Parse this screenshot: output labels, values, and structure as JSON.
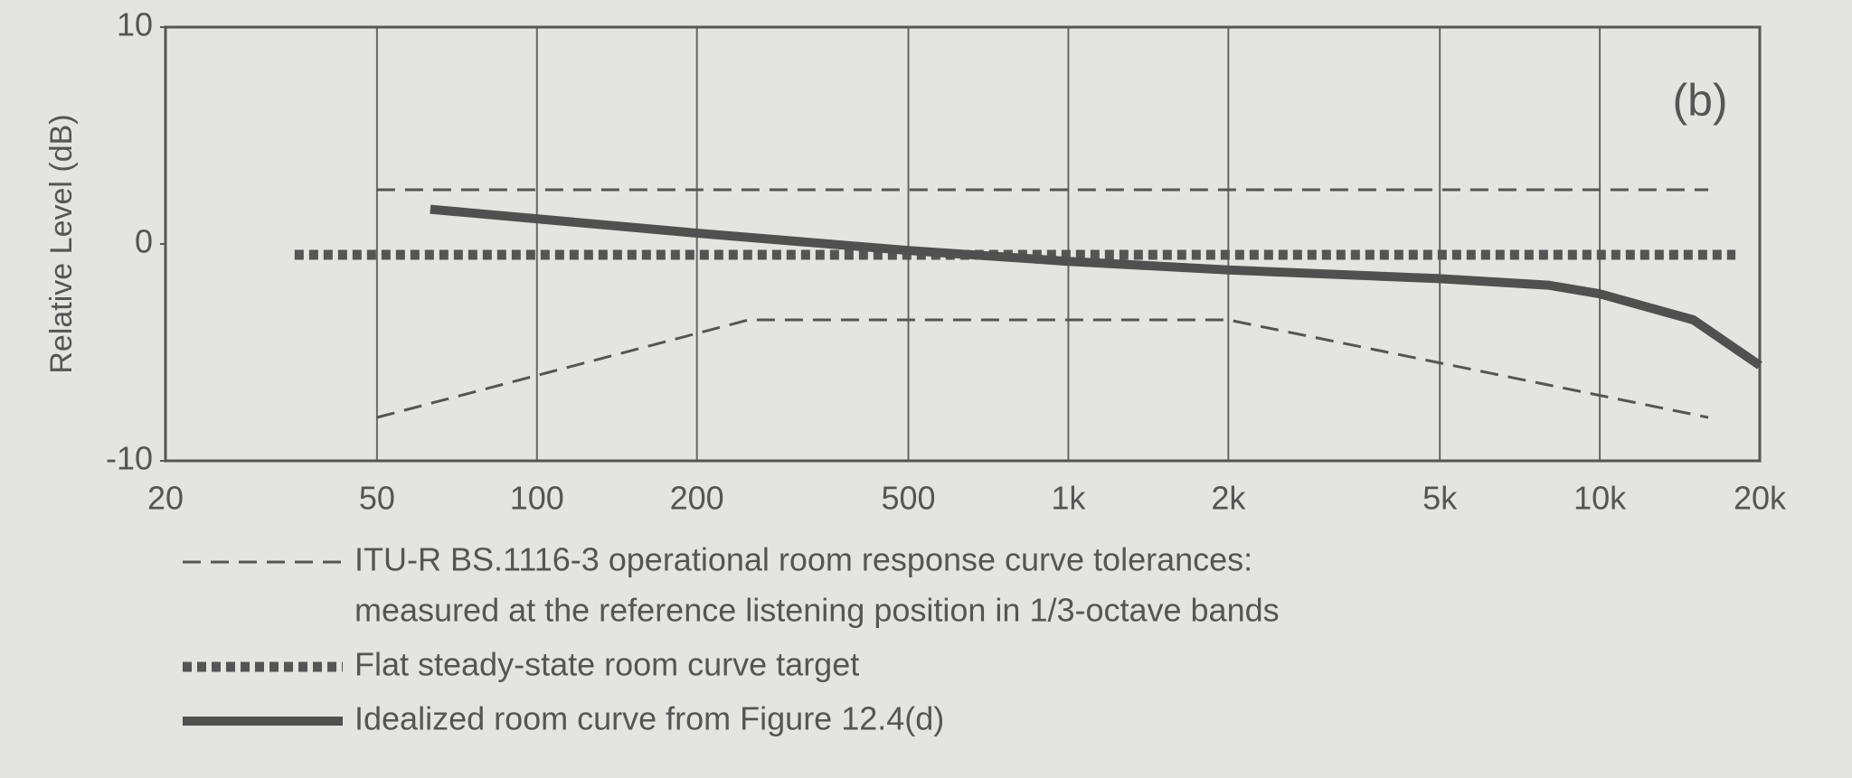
{
  "chart_data": {
    "type": "line",
    "ylabel": "Relative Level (dB)",
    "annotation": "(b)",
    "xscale": "log",
    "grid": "x",
    "xlim": [
      20,
      20000
    ],
    "ylim": [
      -10,
      10
    ],
    "xticks": [
      20,
      50,
      100,
      200,
      500,
      {
        "value": 1000,
        "label": "1k"
      },
      {
        "value": 2000,
        "label": "2k"
      },
      {
        "value": 5000,
        "label": "5k"
      },
      {
        "value": 10000,
        "label": "10k"
      },
      {
        "value": 20000,
        "label": "20k"
      }
    ],
    "yticks": [
      10,
      0,
      -10
    ],
    "series": [
      {
        "name": [
          "ITU-R BS.1116-3 operational room response curve tolerances:",
          "measured at the reference listening position in 1/3-octave bands"
        ],
        "style": "dashed",
        "color": "#555555",
        "x": [
          50,
          16000
        ],
        "values": [
          2.5,
          2.5
        ]
      },
      {
        "style": "dashed",
        "color": "#555555",
        "x": [
          50,
          250,
          2000,
          16000
        ],
        "values": [
          -8,
          -3.5,
          -3.5,
          -8
        ]
      },
      {
        "name": [
          "Flat steady-state room curve target"
        ],
        "style": "dotted",
        "color": "#555555",
        "x": [
          35,
          18000
        ],
        "values": [
          -0.5,
          -0.5
        ]
      },
      {
        "name": [
          "Idealized room curve from Figure 12.4(d)"
        ],
        "style": "solid",
        "color": "#505050",
        "x": [
          63,
          200,
          500,
          1000,
          2000,
          5000,
          8000,
          10000,
          15000,
          20000
        ],
        "values": [
          1.6,
          0.5,
          -0.3,
          -0.8,
          -1.2,
          -1.6,
          -1.9,
          -2.3,
          -3.5,
          -5.6
        ]
      }
    ]
  }
}
